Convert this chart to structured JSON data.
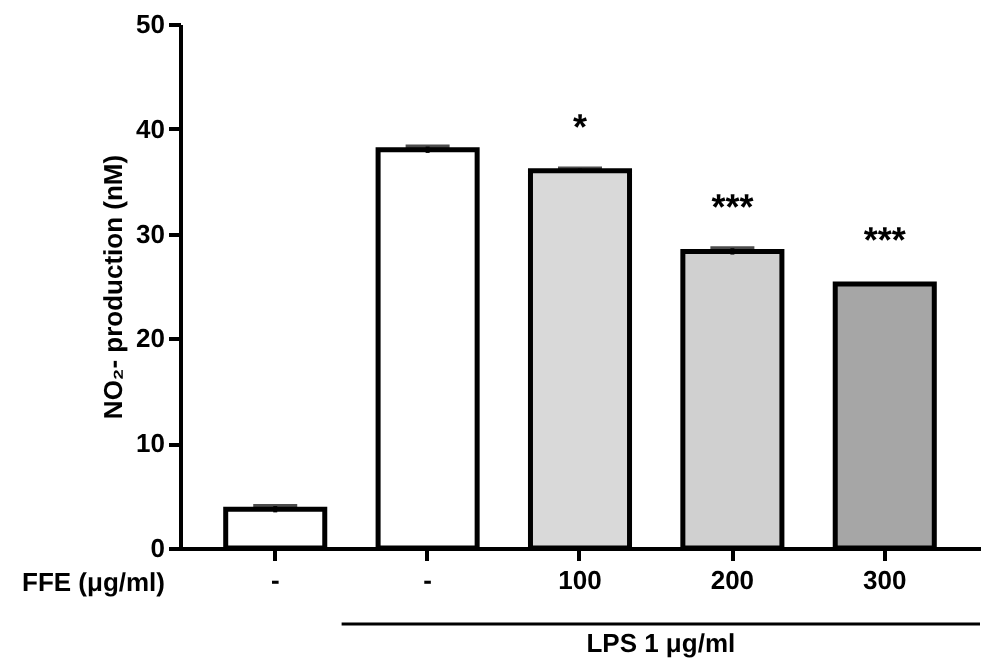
{
  "chart_data": {
    "type": "bar",
    "categories": [
      "-",
      "-",
      "100",
      "200",
      "300"
    ],
    "values": [
      3.7,
      38,
      36,
      28.3,
      25.2
    ],
    "errors": [
      0.3,
      0.3,
      0.2,
      0.3,
      null
    ],
    "colors": [
      "#ffffff",
      "#ffffff",
      "#d9d9d9",
      "#d0d0d0",
      "#a6a6a6"
    ],
    "xlabel": "FFE (μg/ml)",
    "ylabel": "NO₂- production (nM)",
    "ylim": [
      0,
      50
    ],
    "yticks": [
      0,
      10,
      20,
      30,
      40,
      50
    ],
    "grid": false,
    "annotations": [
      {
        "text": "*",
        "x": "100",
        "y": 36
      },
      {
        "text": "***",
        "x": "200",
        "y": 28.3
      },
      {
        "text": "***",
        "x": "300",
        "y": 25.2
      },
      "LPS 1 μg/ml"
    ]
  }
}
